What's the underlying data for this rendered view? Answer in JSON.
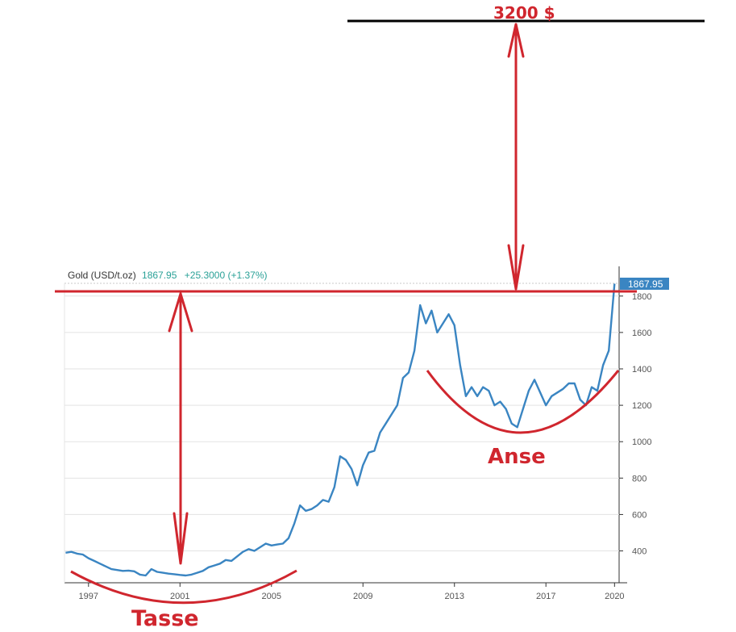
{
  "header": {
    "instrument": "Gold (USD/t.oz)",
    "price": "1867.95",
    "change": "+25.3000 (+1.37%)"
  },
  "price_badge": "1867.95",
  "annotations": {
    "target_label": "3200 $",
    "cup_label": "Tasse",
    "handle_label": "Anse"
  },
  "colors": {
    "line": "#3a85c2",
    "annotation": "#d0262e",
    "target_line": "#000000",
    "badge": "#3a85c2",
    "change_text": "#2aa197"
  },
  "chart_data": {
    "type": "line",
    "title": "Gold (USD/t.oz)",
    "xlabel": "",
    "ylabel": "",
    "xlim": [
      1995.95,
      2020.2
    ],
    "ylim": [
      225,
      1870
    ],
    "grid": true,
    "x_ticks": [
      1997,
      2001,
      2005,
      2009,
      2013,
      2017,
      2020
    ],
    "y_ticks": [
      400,
      600,
      800,
      1000,
      1200,
      1400,
      1600,
      1800
    ],
    "series": [
      {
        "name": "Gold (USD/t.oz)",
        "x": [
          1996.0,
          1996.25,
          1996.5,
          1996.75,
          1997.0,
          1997.25,
          1997.5,
          1997.75,
          1998.0,
          1998.25,
          1998.5,
          1998.75,
          1999.0,
          1999.25,
          1999.5,
          1999.75,
          2000.0,
          2000.25,
          2000.5,
          2000.75,
          2001.0,
          2001.25,
          2001.5,
          2001.75,
          2002.0,
          2002.25,
          2002.5,
          2002.75,
          2003.0,
          2003.25,
          2003.5,
          2003.75,
          2004.0,
          2004.25,
          2004.5,
          2004.75,
          2005.0,
          2005.25,
          2005.5,
          2005.75,
          2006.0,
          2006.25,
          2006.5,
          2006.75,
          2007.0,
          2007.25,
          2007.5,
          2007.75,
          2008.0,
          2008.25,
          2008.5,
          2008.75,
          2009.0,
          2009.25,
          2009.5,
          2009.75,
          2010.0,
          2010.25,
          2010.5,
          2010.75,
          2011.0,
          2011.25,
          2011.5,
          2011.75,
          2012.0,
          2012.25,
          2012.5,
          2012.75,
          2013.0,
          2013.25,
          2013.5,
          2013.75,
          2014.0,
          2014.25,
          2014.5,
          2014.75,
          2015.0,
          2015.25,
          2015.5,
          2015.75,
          2016.0,
          2016.25,
          2016.5,
          2016.75,
          2017.0,
          2017.25,
          2017.5,
          2017.75,
          2018.0,
          2018.25,
          2018.5,
          2018.75,
          2019.0,
          2019.25,
          2019.5,
          2019.75,
          2020.0
        ],
        "values": [
          390,
          395,
          385,
          380,
          360,
          345,
          330,
          315,
          300,
          295,
          290,
          292,
          288,
          270,
          265,
          300,
          285,
          280,
          275,
          272,
          268,
          265,
          270,
          280,
          290,
          310,
          320,
          330,
          350,
          345,
          370,
          395,
          410,
          400,
          420,
          440,
          430,
          435,
          440,
          470,
          550,
          650,
          620,
          630,
          650,
          680,
          670,
          750,
          920,
          900,
          850,
          760,
          870,
          940,
          950,
          1050,
          1100,
          1150,
          1200,
          1350,
          1380,
          1500,
          1750,
          1650,
          1720,
          1600,
          1650,
          1700,
          1640,
          1420,
          1250,
          1300,
          1250,
          1300,
          1280,
          1200,
          1220,
          1180,
          1100,
          1080,
          1180,
          1280,
          1340,
          1270,
          1200,
          1250,
          1270,
          1290,
          1320,
          1320,
          1230,
          1200,
          1300,
          1280,
          1420,
          1500,
          1868
        ]
      }
    ]
  }
}
